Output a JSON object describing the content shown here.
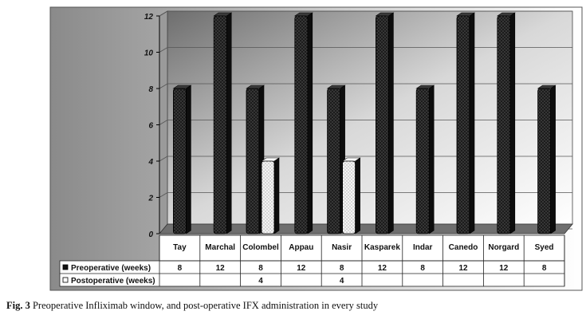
{
  "caption": {
    "label": "Fig. 3",
    "text": "Preoperative Infliximab window, and post-operative IFX administration in every study"
  },
  "chart_data": {
    "type": "bar",
    "categories": [
      "Tay",
      "Marchal",
      "Colombel",
      "Appau",
      "Nasir",
      "Kasparek",
      "Indar",
      "Canedo",
      "Norgard",
      "Syed"
    ],
    "series": [
      {
        "name": "Preoperative (weeks)",
        "values": [
          8,
          12,
          8,
          12,
          8,
          12,
          8,
          12,
          12,
          8
        ],
        "pattern": "dark-dotted"
      },
      {
        "name": "Postoperative (weeks)",
        "values": [
          null,
          null,
          4,
          null,
          4,
          null,
          null,
          null,
          null,
          null
        ],
        "pattern": "light-dotted"
      }
    ],
    "ylim": [
      0,
      12
    ],
    "yticks": [
      0,
      2,
      4,
      6,
      8,
      10,
      12
    ],
    "grid": true,
    "legend": "data-table-below",
    "colors": {
      "dark_bar": "#1c1c1c",
      "light_bar": "#f4f4f4",
      "back_wall_left": "#8a8a8a",
      "back_wall_right": "#ffffff"
    }
  }
}
